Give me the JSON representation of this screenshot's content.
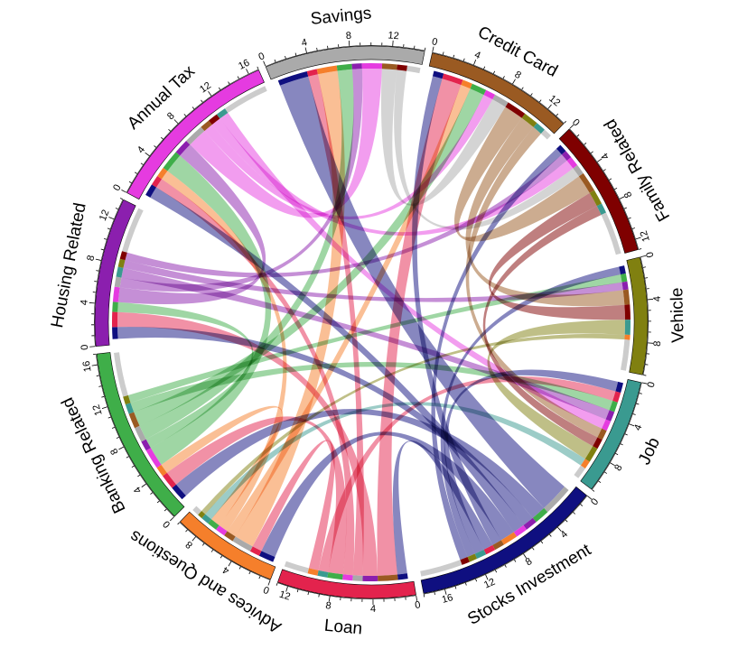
{
  "chart_data": {
    "type": "chord",
    "title": "",
    "sectors": [
      {
        "id": "housing",
        "name": "Housing Related",
        "color": "#8b1fae",
        "size": 14,
        "ticks": [
          0,
          4,
          8,
          12
        ],
        "flip": false
      },
      {
        "id": "tax",
        "name": "Annual Tax",
        "color": "#e53be0",
        "size": 17,
        "ticks": [
          0,
          4,
          8,
          12,
          16
        ],
        "flip": false
      },
      {
        "id": "savings",
        "name": "Savings",
        "color": "#aaaaaa",
        "size": 15,
        "ticks": [
          0,
          4,
          8,
          12
        ],
        "flip": false
      },
      {
        "id": "credit",
        "name": "Credit Card",
        "color": "#9a5a22",
        "size": 14,
        "ticks": [
          0,
          4,
          8,
          12
        ],
        "flip": false
      },
      {
        "id": "family",
        "name": "Family Related",
        "color": "#7f0000",
        "size": 13,
        "ticks": [
          0,
          4,
          8,
          12
        ],
        "flip": true
      },
      {
        "id": "vehicle",
        "name": "Vehicle",
        "color": "#808010",
        "size": 11,
        "ticks": [
          0,
          4,
          8
        ],
        "flip": true
      },
      {
        "id": "job",
        "name": "Job",
        "color": "#3a9a90",
        "size": 11,
        "ticks": [
          0,
          4,
          8
        ],
        "flip": true
      },
      {
        "id": "stocks",
        "name": "Stocks Investment",
        "color": "#0f0f80",
        "size": 18,
        "ticks": [
          0,
          4,
          8,
          12,
          16
        ],
        "flip": true
      },
      {
        "id": "loan",
        "name": "Loan",
        "color": "#e3234d",
        "size": 13,
        "ticks": [
          0,
          4,
          8,
          12
        ],
        "flip": true
      },
      {
        "id": "advices",
        "name": "Advices and Questions",
        "color": "#f57f2b",
        "size": 10,
        "ticks": [
          0,
          4,
          8
        ],
        "flip": false
      },
      {
        "id": "banking",
        "name": "Banking Related",
        "color": "#3fae49",
        "size": 17,
        "ticks": [
          0,
          4,
          8,
          12,
          16
        ],
        "flip": false
      }
    ],
    "links": [
      {
        "source": "stocks",
        "target": "savings",
        "value": 3.0
      },
      {
        "source": "stocks",
        "target": "banking",
        "value": 1.5
      },
      {
        "source": "stocks",
        "target": "housing",
        "value": 1.2
      },
      {
        "source": "stocks",
        "target": "tax",
        "value": 1.2
      },
      {
        "source": "stocks",
        "target": "advices",
        "value": 1.5
      },
      {
        "source": "stocks",
        "target": "credit",
        "value": 1.0
      },
      {
        "source": "stocks",
        "target": "loan",
        "value": 1.0
      },
      {
        "source": "stocks",
        "target": "job",
        "value": 1.0
      },
      {
        "source": "stocks",
        "target": "vehicle",
        "value": 0.8
      },
      {
        "source": "stocks",
        "target": "family",
        "value": 0.8
      },
      {
        "source": "loan",
        "target": "credit",
        "value": 2.0
      },
      {
        "source": "loan",
        "target": "housing",
        "value": 1.5
      },
      {
        "source": "loan",
        "target": "savings",
        "value": 1.0
      },
      {
        "source": "loan",
        "target": "tax",
        "value": 1.0
      },
      {
        "source": "loan",
        "target": "banking",
        "value": 1.5
      },
      {
        "source": "loan",
        "target": "job",
        "value": 1.0
      },
      {
        "source": "loan",
        "target": "advices",
        "value": 1.0
      },
      {
        "source": "advices",
        "target": "savings",
        "value": 2.0
      },
      {
        "source": "advices",
        "target": "credit",
        "value": 1.0
      },
      {
        "source": "advices",
        "target": "tax",
        "value": 1.0
      },
      {
        "source": "advices",
        "target": "banking",
        "value": 1.0
      },
      {
        "source": "banking",
        "target": "tax",
        "value": 2.0
      },
      {
        "source": "banking",
        "target": "housing",
        "value": 1.0
      },
      {
        "source": "banking",
        "target": "savings",
        "value": 1.5
      },
      {
        "source": "banking",
        "target": "credit",
        "value": 1.5
      },
      {
        "source": "banking",
        "target": "job",
        "value": 1.0
      },
      {
        "source": "banking",
        "target": "vehicle",
        "value": 0.8
      },
      {
        "source": "housing",
        "target": "tax",
        "value": 1.5
      },
      {
        "source": "housing",
        "target": "savings",
        "value": 1.0
      },
      {
        "source": "housing",
        "target": "job",
        "value": 1.0
      },
      {
        "source": "housing",
        "target": "vehicle",
        "value": 0.8
      },
      {
        "source": "housing",
        "target": "family",
        "value": 0.8
      },
      {
        "source": "tax",
        "target": "savings",
        "value": 2.0
      },
      {
        "source": "tax",
        "target": "credit",
        "value": 1.0
      },
      {
        "source": "tax",
        "target": "family",
        "value": 1.0
      },
      {
        "source": "tax",
        "target": "job",
        "value": 1.0
      },
      {
        "source": "savings",
        "target": "credit",
        "value": 1.5
      },
      {
        "source": "savings",
        "target": "family",
        "value": 1.0
      },
      {
        "source": "credit",
        "target": "family",
        "value": 2.0
      },
      {
        "source": "credit",
        "target": "vehicle",
        "value": 1.5
      },
      {
        "source": "credit",
        "target": "job",
        "value": 1.0
      },
      {
        "source": "family",
        "target": "vehicle",
        "value": 1.5
      },
      {
        "source": "family",
        "target": "job",
        "value": 1.0
      },
      {
        "source": "vehicle",
        "target": "job",
        "value": 1.5
      },
      {
        "source": "job",
        "target": "advices",
        "value": 0.8
      },
      {
        "source": "vehicle",
        "target": "advices",
        "value": 0.5
      }
    ]
  }
}
